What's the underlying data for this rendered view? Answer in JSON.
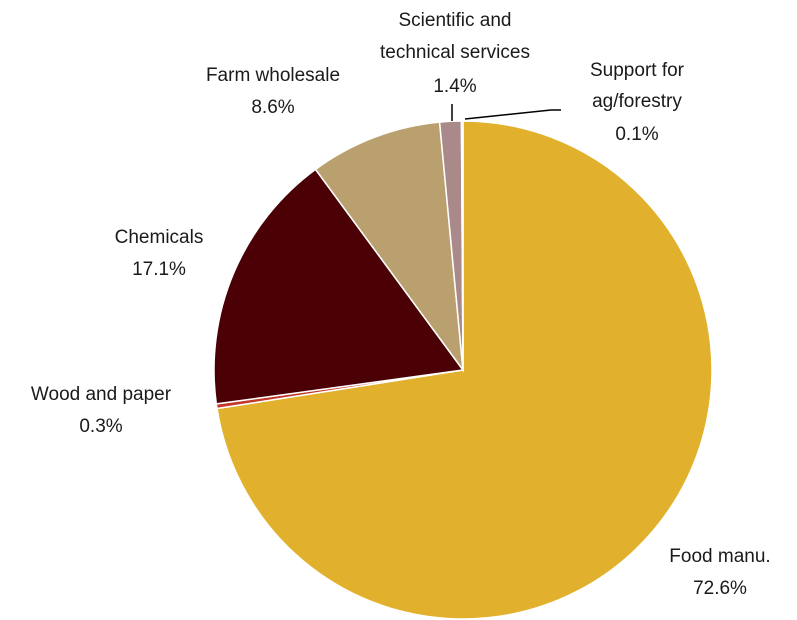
{
  "chart_data": {
    "type": "pie",
    "title": "",
    "slices": [
      {
        "label": "Food manu.",
        "pct_label": "72.6%",
        "value": 72.6,
        "color": "#E1B12D"
      },
      {
        "label": "Wood and paper",
        "pct_label": "0.3%",
        "value": 0.3,
        "color": "#C0392B"
      },
      {
        "label": "Chemicals",
        "pct_label": "17.1%",
        "value": 17.1,
        "color": "#4A0005"
      },
      {
        "label": "Farm wholesale",
        "pct_label": "8.6%",
        "value": 8.6,
        "color": "#BBA06F"
      },
      {
        "label": "Scientific and technical services",
        "pct_label": "1.4%",
        "value": 1.4,
        "color": "#A98989"
      },
      {
        "label": "Support for ag/forestry",
        "pct_label": "0.1%",
        "value": 0.1,
        "color": "#6B1020"
      }
    ]
  },
  "labels": {
    "food_name": "Food manu.",
    "food_pct": "72.6%",
    "wood_name": "Wood and paper",
    "wood_pct": "0.3%",
    "chem_name": "Chemicals",
    "chem_pct": "17.1%",
    "farm_name": "Farm wholesale",
    "farm_pct": "8.6%",
    "sci_name_1": "Scientific and",
    "sci_name_2": "technical services",
    "sci_pct": "1.4%",
    "support_name_1": "Support for",
    "support_name_2": "ag/forestry",
    "support_pct": "0.1%"
  }
}
